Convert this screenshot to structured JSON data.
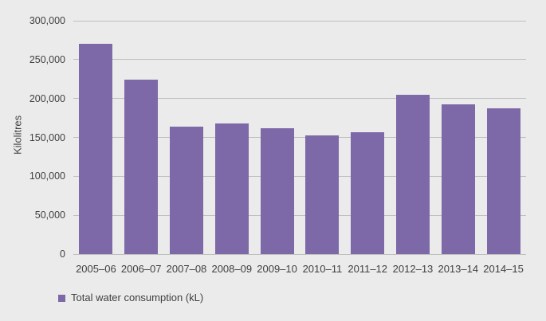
{
  "figure": {
    "background_color": "#EBEBEB",
    "gridline_color": "#BFBFBF",
    "text_color": "#404040"
  },
  "chart_data": {
    "type": "bar",
    "title": "",
    "xlabel": "",
    "ylabel": "Kilolitres",
    "categories": [
      "2005–06",
      "2006–07",
      "2007–08",
      "2008–09",
      "2009–10",
      "2010–11",
      "2011–12",
      "2012–13",
      "2013–14",
      "2014–15"
    ],
    "values": [
      270000,
      224000,
      164000,
      168000,
      162000,
      153000,
      157000,
      205000,
      192000,
      187000
    ],
    "bar_color": "#7D68A8",
    "ylim": [
      0,
      300000
    ],
    "ytick_interval": 50000,
    "ytick_labels": [
      "0",
      "50,000",
      "100,000",
      "150,000",
      "200,000",
      "250,000",
      "300,000"
    ],
    "grid": true,
    "legend": {
      "position": "bottom-left",
      "entries": [
        {
          "label": "Total water consumption (kL)",
          "color": "#7D68A8"
        }
      ]
    }
  }
}
